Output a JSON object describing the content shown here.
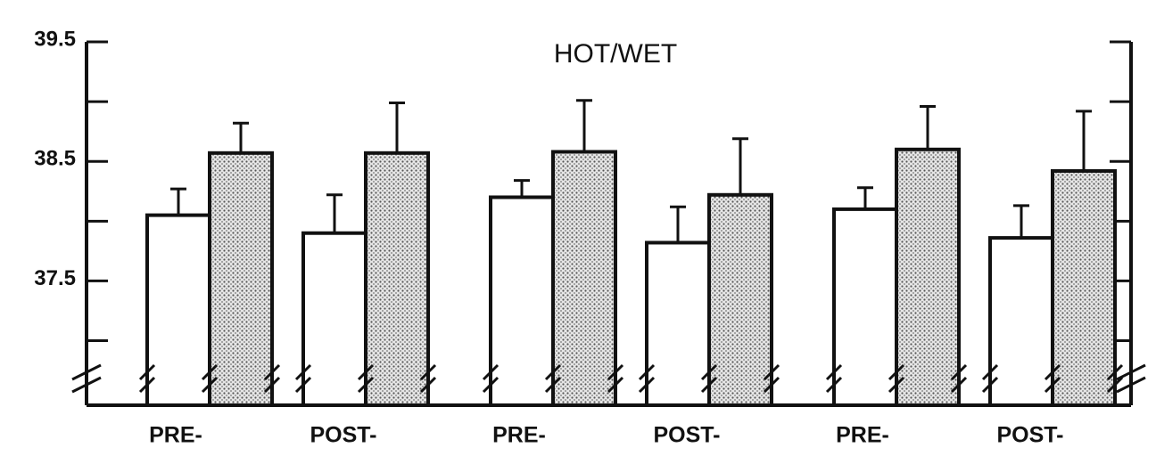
{
  "chart_data": {
    "type": "bar",
    "title": "HOT/WET",
    "categories": [
      "PRE-",
      "POST-",
      "PRE-",
      "POST-",
      "PRE-",
      "POST-"
    ],
    "series": [
      {
        "color": "#ffffff",
        "values": [
          38.05,
          37.9,
          38.2,
          37.82,
          38.1,
          37.86
        ],
        "errors": [
          0.22,
          0.32,
          0.14,
          0.3,
          0.18,
          0.27
        ]
      },
      {
        "color": "stipple",
        "values": [
          38.57,
          38.57,
          38.58,
          38.22,
          38.6,
          38.42
        ],
        "errors": [
          0.25,
          0.42,
          0.43,
          0.47,
          0.36,
          0.5
        ]
      }
    ],
    "ylim": [
      36.46,
      39.5
    ],
    "yticks": [
      37.5,
      38.5,
      39.5
    ],
    "minor_yticks": [
      37.0,
      38.0,
      39.0
    ],
    "axis_break": true
  }
}
